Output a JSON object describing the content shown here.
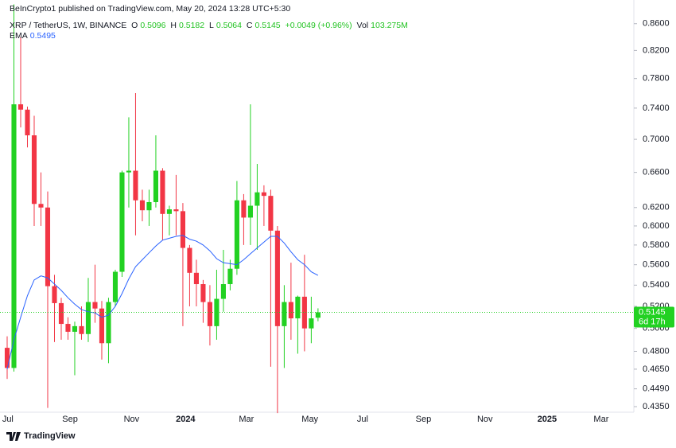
{
  "header": {
    "published": "BeInCrypto1 published on TradingView.com, May 20, 2024 13:28 UTC+5:30",
    "symbol": "XRP / TetherUS, 1W, BINANCE",
    "o_label": "O",
    "h_label": "H",
    "l_label": "L",
    "c_label": "C",
    "change": "+0.0049 (+0.96%)",
    "vol_label": "Vol",
    "vol": "103.275M",
    "ema_label": "EMA",
    "countdown": "6d 17h",
    "brand": "TradingView"
  },
  "chart_data": {
    "type": "candlestick",
    "log_scale": true,
    "grid": false,
    "up_color": "#22d122",
    "down_color": "#f23645",
    "open": [
      0.483,
      0.466,
      0.745,
      0.738,
      0.705,
      0.624,
      0.62,
      0.539,
      0.523,
      0.504,
      0.497,
      0.502,
      0.495,
      0.524,
      0.518,
      0.487,
      0.524,
      0.553,
      0.66,
      0.662,
      0.628,
      0.617,
      0.626,
      0.662,
      0.613,
      0.618,
      0.616,
      0.577,
      0.552,
      0.541,
      0.524,
      0.502,
      0.527,
      0.541,
      0.556,
      0.628,
      0.609,
      0.622,
      0.637,
      0.633,
      0.595,
      0.502,
      0.524,
      0.509,
      0.529,
      0.5,
      0.5096
    ],
    "high": [
      0.493,
      0.89,
      0.84,
      0.742,
      0.73,
      0.66,
      0.638,
      0.55,
      0.528,
      0.51,
      0.506,
      0.52,
      0.547,
      0.56,
      0.525,
      0.528,
      0.555,
      0.662,
      0.728,
      0.76,
      0.64,
      0.64,
      0.705,
      0.665,
      0.622,
      0.657,
      0.625,
      0.58,
      0.565,
      0.545,
      0.54,
      0.555,
      0.575,
      0.565,
      0.65,
      0.635,
      0.745,
      0.67,
      0.645,
      0.64,
      0.6,
      0.54,
      0.562,
      0.53,
      0.57,
      0.529,
      0.5182
    ],
    "low": [
      0.457,
      0.463,
      0.715,
      0.69,
      0.6,
      0.6,
      0.434,
      0.488,
      0.49,
      0.49,
      0.46,
      0.49,
      0.488,
      0.505,
      0.473,
      0.47,
      0.52,
      0.548,
      0.62,
      0.59,
      0.605,
      0.6,
      0.62,
      0.585,
      0.59,
      0.59,
      0.502,
      0.52,
      0.52,
      0.505,
      0.485,
      0.49,
      0.515,
      0.535,
      0.55,
      0.58,
      0.58,
      0.575,
      0.6,
      0.467,
      0.43,
      0.466,
      0.49,
      0.478,
      0.48,
      0.487,
      0.5064
    ],
    "close": [
      0.466,
      0.745,
      0.738,
      0.705,
      0.624,
      0.62,
      0.539,
      0.523,
      0.504,
      0.497,
      0.502,
      0.495,
      0.524,
      0.518,
      0.487,
      0.524,
      0.553,
      0.66,
      0.662,
      0.628,
      0.617,
      0.626,
      0.662,
      0.613,
      0.618,
      0.616,
      0.577,
      0.552,
      0.541,
      0.524,
      0.502,
      0.527,
      0.541,
      0.556,
      0.628,
      0.609,
      0.622,
      0.637,
      0.633,
      0.595,
      0.502,
      0.524,
      0.509,
      0.529,
      0.5,
      0.509,
      0.5145
    ],
    "series": [
      {
        "name": "EMA",
        "color": "#2962ff",
        "values": [
          0.465,
          0.49,
          0.51,
          0.53,
          0.545,
          0.549,
          0.547,
          0.541,
          0.535,
          0.528,
          0.522,
          0.517,
          0.515,
          0.514,
          0.51,
          0.512,
          0.52,
          0.532,
          0.546,
          0.558,
          0.565,
          0.572,
          0.579,
          0.585,
          0.587,
          0.589,
          0.59,
          0.586,
          0.584,
          0.58,
          0.574,
          0.566,
          0.562,
          0.561,
          0.56,
          0.565,
          0.571,
          0.577,
          0.583,
          0.589,
          0.589,
          0.582,
          0.573,
          0.565,
          0.56,
          0.553,
          0.5495
        ]
      }
    ],
    "xlim": [
      -1.06,
      92.5
    ],
    "xticks": [
      {
        "value": 0.1,
        "label": "Jul"
      },
      {
        "value": 9.3,
        "label": "Sep"
      },
      {
        "value": 18.4,
        "label": "Nov"
      },
      {
        "value": 26.4,
        "label": "2024"
      },
      {
        "value": 35.4,
        "label": "Mar"
      },
      {
        "value": 44.8,
        "label": "May"
      },
      {
        "value": 52.6,
        "label": "Jul"
      },
      {
        "value": 61.6,
        "label": "Sep"
      },
      {
        "value": 70.7,
        "label": "Nov"
      },
      {
        "value": 79.9,
        "label": "2025"
      },
      {
        "value": 87.9,
        "label": "Mar"
      }
    ],
    "ylim": [
      0.4295,
      0.897
    ],
    "yticks": [
      {
        "value": 0.86,
        "label": "0.8600"
      },
      {
        "value": 0.82,
        "label": "0.8200"
      },
      {
        "value": 0.78,
        "label": "0.7800"
      },
      {
        "value": 0.74,
        "label": "0.7400"
      },
      {
        "value": 0.7,
        "label": "0.7000"
      },
      {
        "value": 0.66,
        "label": "0.6600"
      },
      {
        "value": 0.62,
        "label": "0.6200"
      },
      {
        "value": 0.6,
        "label": "0.6000"
      },
      {
        "value": 0.58,
        "label": "0.5800"
      },
      {
        "value": 0.56,
        "label": "0.5600"
      },
      {
        "value": 0.54,
        "label": "0.5400"
      },
      {
        "value": 0.52,
        "label": "0.5200"
      },
      {
        "value": 0.5,
        "label": "0.5000"
      },
      {
        "value": 0.48,
        "label": "0.4800"
      },
      {
        "value": 0.465,
        "label": "0.4650"
      },
      {
        "value": 0.449,
        "label": "0.4490"
      },
      {
        "value": 0.435,
        "label": "0.4350"
      }
    ]
  }
}
